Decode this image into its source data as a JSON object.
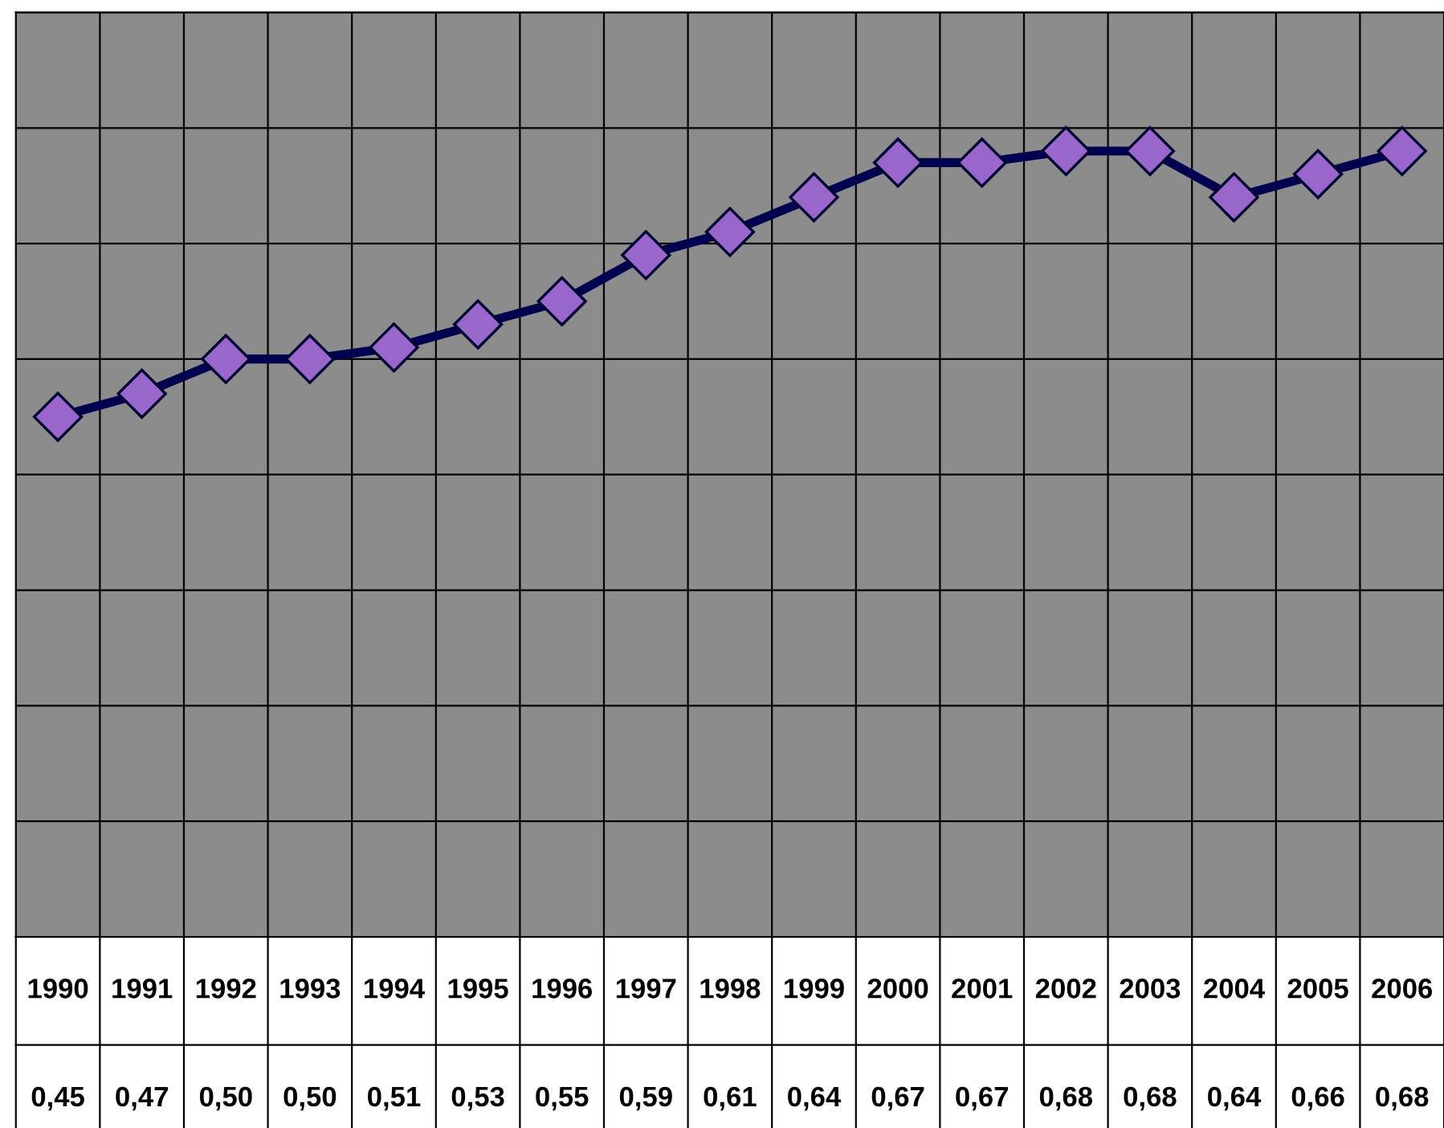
{
  "chart_data": {
    "type": "line",
    "categories": [
      "1990",
      "1991",
      "1992",
      "1993",
      "1994",
      "1995",
      "1996",
      "1997",
      "1998",
      "1999",
      "2000",
      "2001",
      "2002",
      "2003",
      "2004",
      "2005",
      "2006"
    ],
    "series": [
      {
        "color": "#000050",
        "values": [
          0.45,
          0.47,
          0.5,
          0.5,
          0.51,
          0.53,
          0.55,
          0.59,
          0.61,
          0.64,
          0.67,
          0.67,
          0.68,
          0.68,
          0.64,
          0.66,
          0.68
        ],
        "value_labels": [
          "0,45",
          "0,47",
          "0,50",
          "0,50",
          "0,51",
          "0,53",
          "0,55",
          "0,59",
          "0,61",
          "0,64",
          "0,67",
          "0,67",
          "0,68",
          "0,68",
          "0,64",
          "0,66",
          "0,68"
        ]
      }
    ],
    "marker": "diamond",
    "line_style": "solid",
    "ylim": [
      0,
      0.8
    ],
    "yticks": [
      {
        "value": 0,
        "label": null
      },
      {
        "value": 0.1,
        "label": null
      },
      {
        "value": 0.2,
        "label": null
      },
      {
        "value": 0.3,
        "label": null
      },
      {
        "value": 0.4,
        "label": null
      },
      {
        "value": 0.5,
        "label": null
      },
      {
        "value": 0.6,
        "label": null
      },
      {
        "value": 0.7,
        "label": null
      },
      {
        "value": 0.8,
        "label": null
      }
    ],
    "tick_labels": "x",
    "grid": true,
    "legend": false
  }
}
